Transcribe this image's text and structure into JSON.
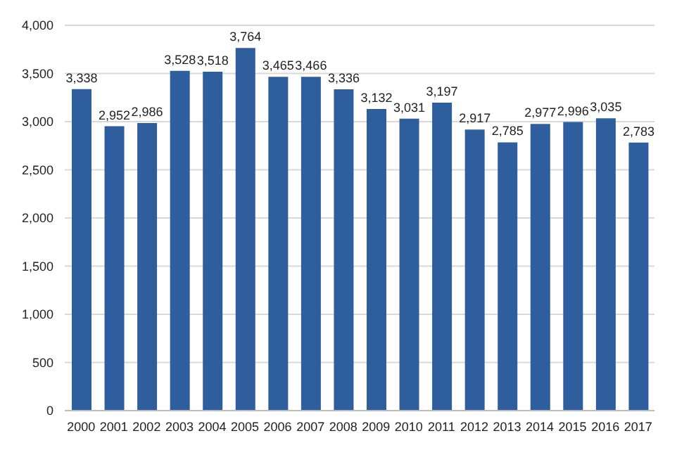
{
  "chart_data": {
    "type": "bar",
    "categories": [
      "2000",
      "2001",
      "2002",
      "2003",
      "2004",
      "2005",
      "2006",
      "2007",
      "2008",
      "2009",
      "2010",
      "2011",
      "2012",
      "2013",
      "2014",
      "2015",
      "2016",
      "2017"
    ],
    "values": [
      3338,
      2952,
      2986,
      3528,
      3518,
      3764,
      3465,
      3466,
      3336,
      3132,
      3031,
      3197,
      2917,
      2785,
      2977,
      2996,
      3035,
      2783
    ],
    "value_labels": [
      "3,338",
      "2,952",
      "2,986",
      "3,528",
      "3,518",
      "3,764",
      "3,465",
      "3,466",
      "3,336",
      "3,132",
      "3,031",
      "3,197",
      "2,917",
      "2,785",
      "2,977",
      "2,996",
      "3,035",
      "2,783"
    ],
    "color": "#2f5e9e",
    "ylim": [
      0,
      4000
    ],
    "yticks": [
      {
        "value": 0,
        "label": "0"
      },
      {
        "value": 500,
        "label": "500"
      },
      {
        "value": 1000,
        "label": "1,000"
      },
      {
        "value": 1500,
        "label": "1,500"
      },
      {
        "value": 2000,
        "label": "2,000"
      },
      {
        "value": 2500,
        "label": "2,500"
      },
      {
        "value": 3000,
        "label": "3,000"
      },
      {
        "value": 3500,
        "label": "3,500"
      },
      {
        "value": 4000,
        "label": "4,000"
      }
    ],
    "grid": "y"
  }
}
